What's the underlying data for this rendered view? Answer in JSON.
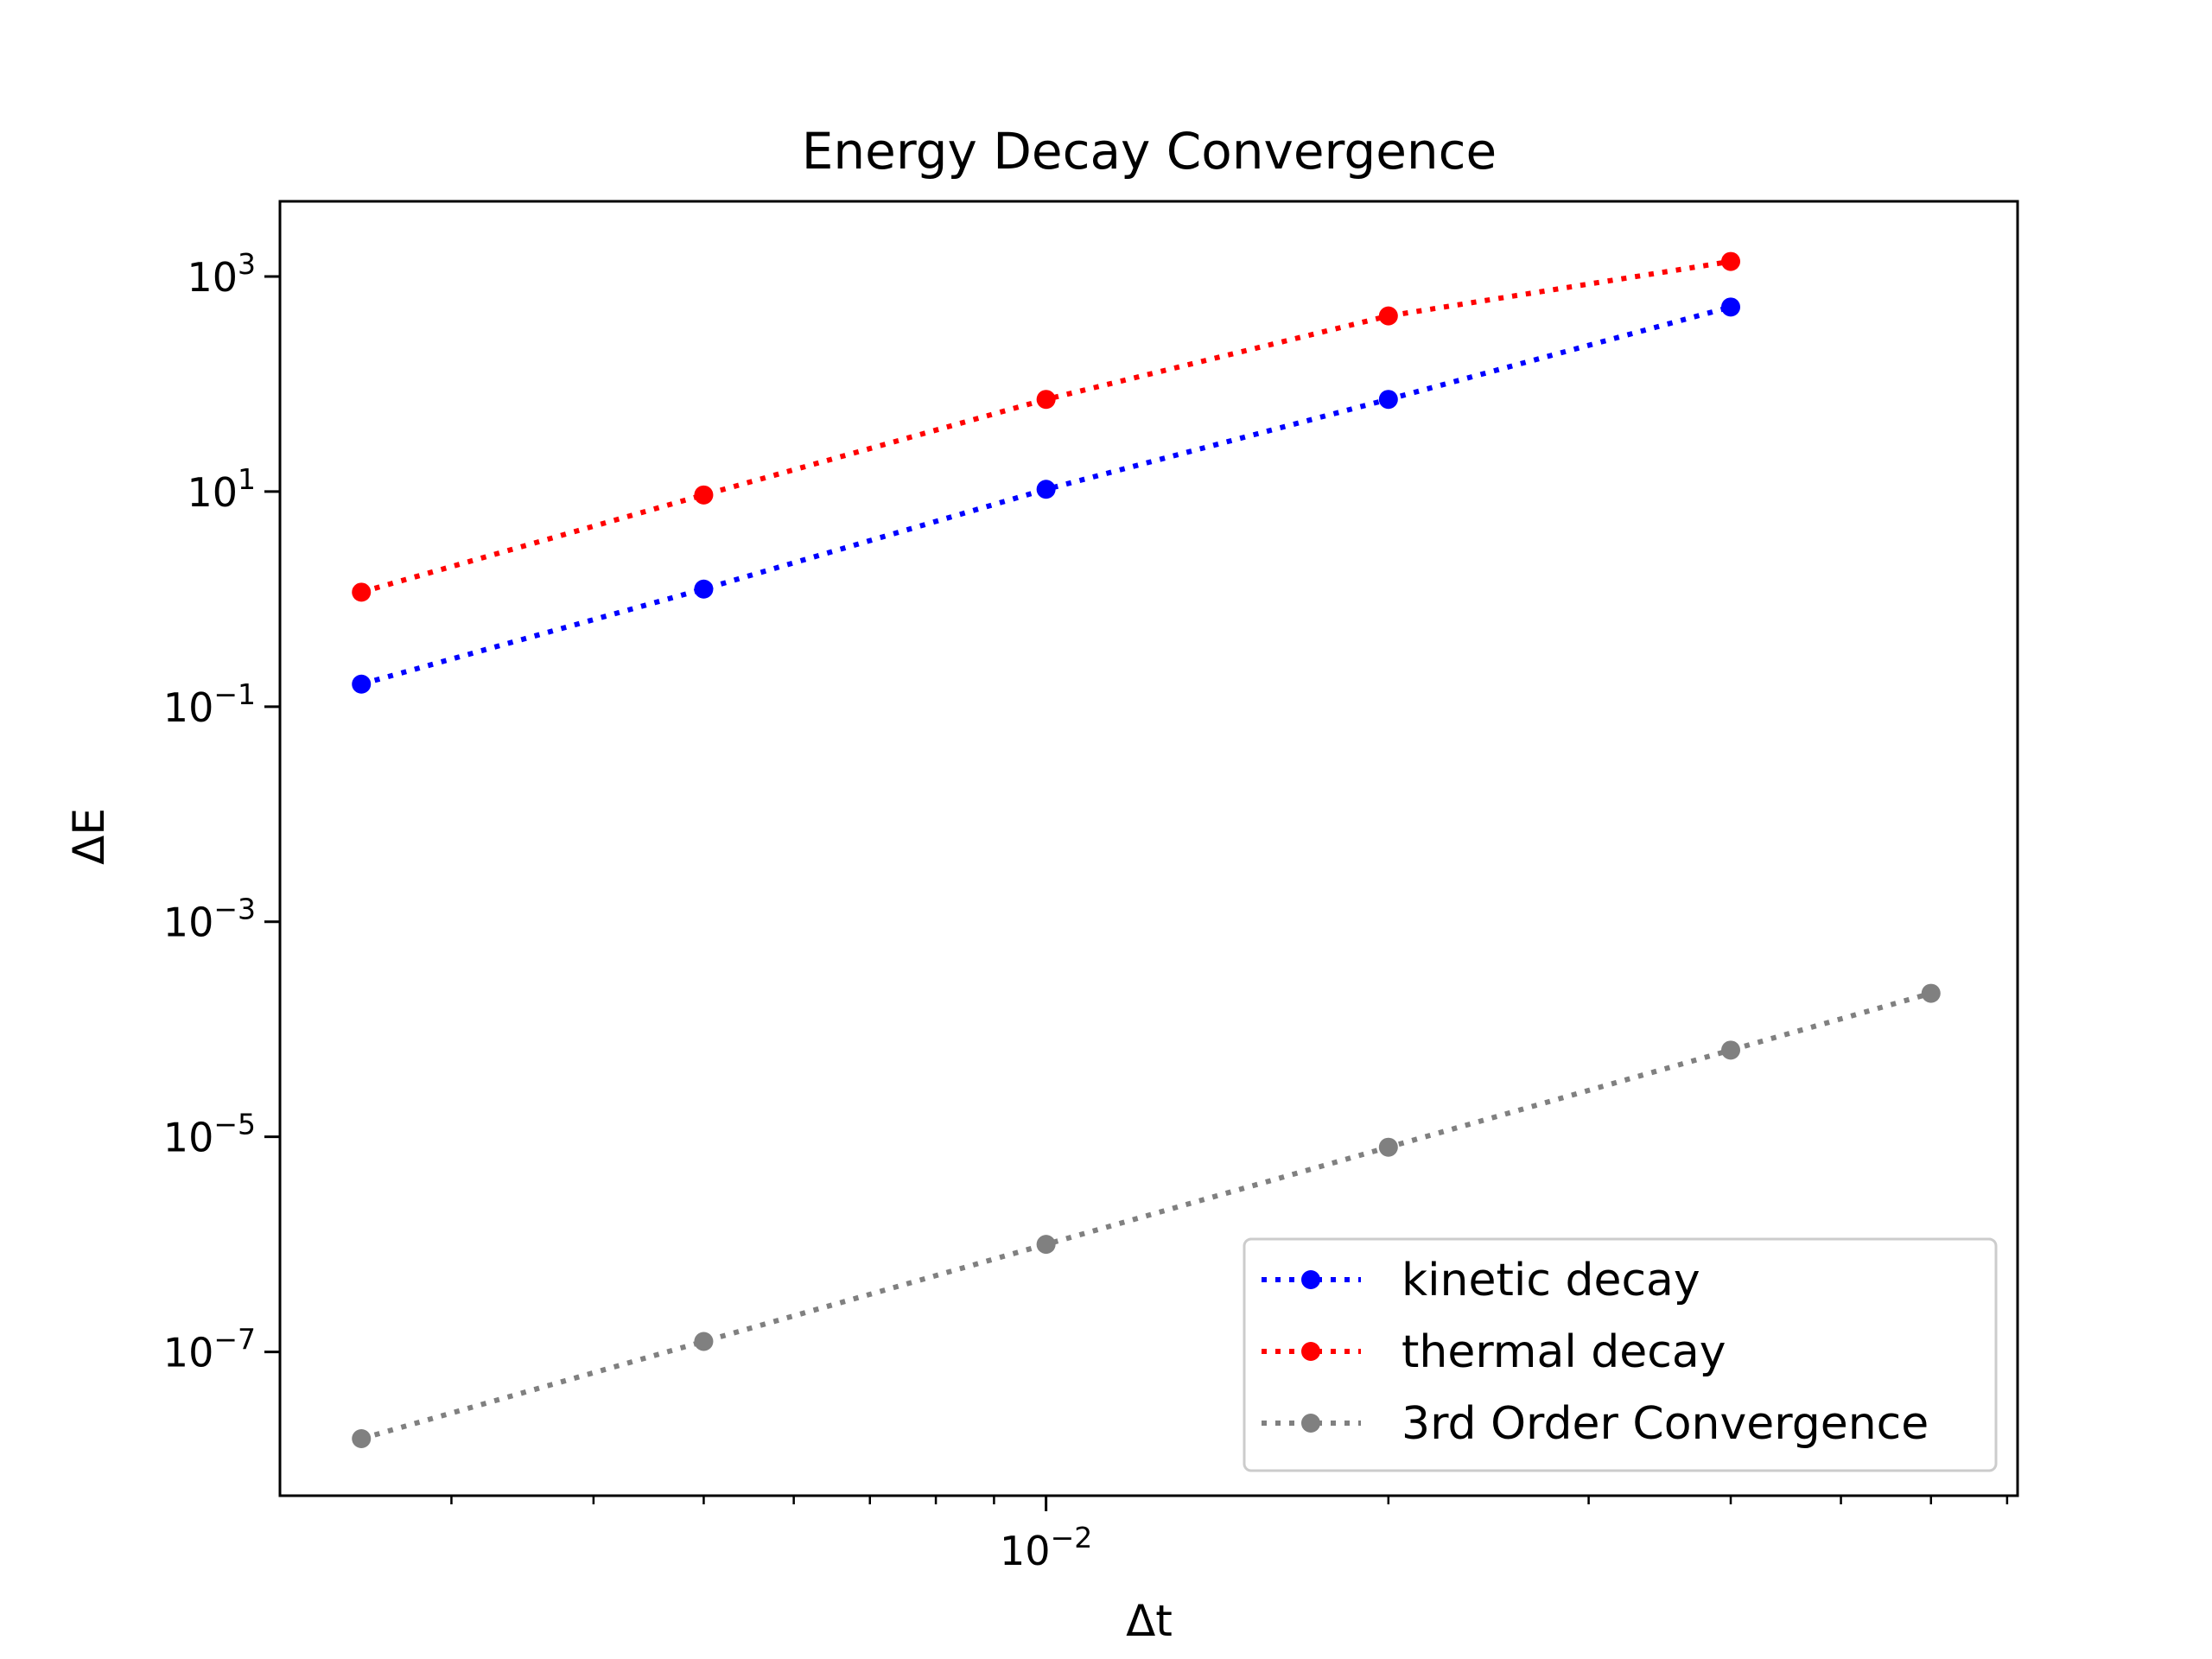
{
  "chart_data": {
    "type": "line",
    "title": "Energy Decay Convergence",
    "xlabel": "Δt",
    "ylabel": "ΔE",
    "xscale": "log",
    "yscale": "log",
    "xlim": [
      0.00212,
      0.0715
    ],
    "ylim": [
      4.6e-09,
      5000
    ],
    "grid": false,
    "legend_position": "lower right",
    "x_ticks": [
      {
        "value": 0.01,
        "base": "10",
        "exp": "−2"
      }
    ],
    "y_ticks": [
      {
        "value": 1e-07,
        "base": "10",
        "exp": "−7"
      },
      {
        "value": 1e-05,
        "base": "10",
        "exp": "−5"
      },
      {
        "value": 0.001,
        "base": "10",
        "exp": "−3"
      },
      {
        "value": 0.1,
        "base": "10",
        "exp": "−1"
      },
      {
        "value": 10,
        "base": "10",
        "exp": "1"
      },
      {
        "value": 1000,
        "base": "10",
        "exp": "3"
      }
    ],
    "series": [
      {
        "name": "kinetic decay",
        "color": "#0000ff",
        "x": [
          0.0025,
          0.005,
          0.01,
          0.02,
          0.04
        ],
        "y": [
          0.162,
          1.24,
          10.5,
          72,
          520
        ]
      },
      {
        "name": "thermal decay",
        "color": "#ff0000",
        "x": [
          0.0025,
          0.005,
          0.01,
          0.02,
          0.04
        ],
        "y": [
          1.16,
          9.3,
          72,
          430,
          1380
        ]
      },
      {
        "name": "3rd Order Convergence",
        "color": "#808080",
        "x": [
          0.0025,
          0.005,
          0.01,
          0.02,
          0.04,
          0.06
        ],
        "y": [
          1.56e-08,
          1.25e-07,
          1e-06,
          8e-06,
          6.4e-05,
          0.000216
        ]
      }
    ]
  }
}
